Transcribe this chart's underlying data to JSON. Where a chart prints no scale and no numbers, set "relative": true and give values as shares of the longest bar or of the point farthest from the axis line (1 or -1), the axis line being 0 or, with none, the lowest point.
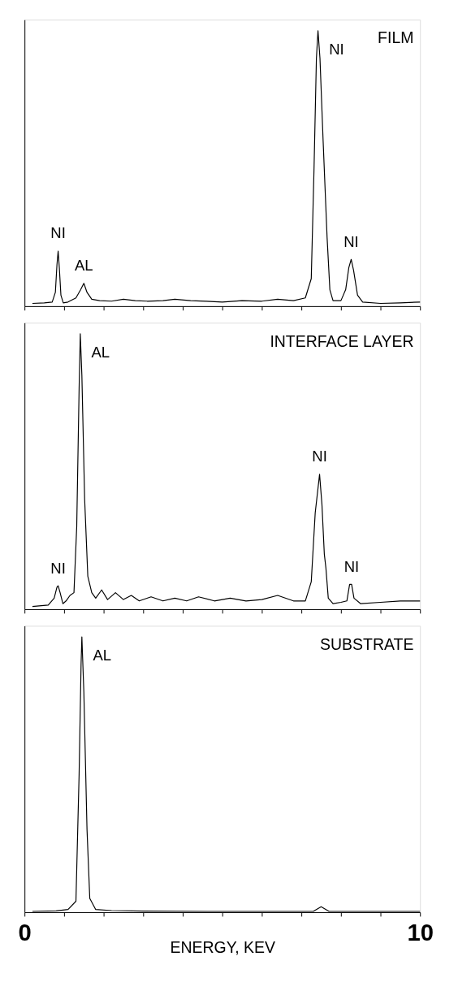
{
  "chart_data": [
    {
      "type": "line",
      "title": "FILM",
      "relative": true,
      "xlim": [
        0,
        10
      ],
      "tick_labels": false,
      "xticks": [
        0,
        {
          "value": 1,
          "label": null
        },
        {
          "value": 2,
          "label": null
        },
        {
          "value": 3,
          "label": null
        },
        {
          "value": 4,
          "label": null
        },
        {
          "value": 5,
          "label": null
        },
        {
          "value": 6,
          "label": null
        },
        {
          "value": 7,
          "label": null
        },
        {
          "value": 8,
          "label": null
        },
        {
          "value": 9,
          "label": null
        },
        10
      ],
      "series": [
        {
          "color": "#000000",
          "x": [
            0.2,
            0.5,
            0.7,
            0.78,
            0.82,
            0.85,
            0.88,
            0.92,
            0.98,
            1.1,
            1.3,
            1.42,
            1.5,
            1.58,
            1.7,
            1.9,
            2.2,
            2.5,
            2.8,
            3.1,
            3.5,
            3.8,
            4.2,
            4.6,
            5.0,
            5.5,
            6.0,
            6.4,
            6.8,
            7.1,
            7.25,
            7.32,
            7.38,
            7.42,
            7.47,
            7.55,
            7.65,
            7.72,
            7.8,
            8.0,
            8.12,
            8.2,
            8.26,
            8.32,
            8.42,
            8.55,
            9.0,
            9.5,
            10
          ],
          "values": [
            0.01,
            0.012,
            0.015,
            0.05,
            0.15,
            0.2,
            0.14,
            0.04,
            0.012,
            0.015,
            0.03,
            0.06,
            0.083,
            0.05,
            0.025,
            0.02,
            0.018,
            0.025,
            0.02,
            0.018,
            0.02,
            0.025,
            0.02,
            0.018,
            0.015,
            0.02,
            0.018,
            0.025,
            0.02,
            0.03,
            0.1,
            0.5,
            0.9,
            1,
            0.9,
            0.6,
            0.25,
            0.06,
            0.02,
            0.02,
            0.06,
            0.14,
            0.17,
            0.13,
            0.04,
            0.015,
            0.01,
            0.012,
            0.015
          ]
        }
      ],
      "annotations": [
        {
          "text": "NI",
          "x": 0.85,
          "y": 0.2
        },
        {
          "text": "AL",
          "x": 1.5,
          "y": 0.083
        },
        {
          "text": "NI",
          "x": 7.42,
          "y": 1
        },
        {
          "text": "NI",
          "x": 8.26,
          "y": 0.17
        }
      ]
    },
    {
      "type": "line",
      "title": "INTERFACE LAYER",
      "relative": true,
      "xlim": [
        0,
        10
      ],
      "tick_labels": false,
      "xticks": [
        0,
        {
          "value": 1,
          "label": null
        },
        {
          "value": 2,
          "label": null
        },
        {
          "value": 3,
          "label": null
        },
        {
          "value": 4,
          "label": null
        },
        {
          "value": 5,
          "label": null
        },
        {
          "value": 6,
          "label": null
        },
        {
          "value": 7,
          "label": null
        },
        {
          "value": 8,
          "label": null
        },
        {
          "value": 9,
          "label": null
        },
        10
      ],
      "series": [
        {
          "color": "#000000",
          "x": [
            0.2,
            0.6,
            0.75,
            0.82,
            0.85,
            0.9,
            0.97,
            1.05,
            1.15,
            1.25,
            1.32,
            1.38,
            1.41,
            1.45,
            1.52,
            1.6,
            1.7,
            1.8,
            1.95,
            2.1,
            2.3,
            2.5,
            2.7,
            2.9,
            3.2,
            3.5,
            3.8,
            4.1,
            4.4,
            4.8,
            5.2,
            5.6,
            6.0,
            6.4,
            6.8,
            7.1,
            7.25,
            7.35,
            7.46,
            7.52,
            7.58,
            7.62,
            7.68,
            7.8,
            8.0,
            8.15,
            8.22,
            8.27,
            8.33,
            8.5,
            9.0,
            9.5,
            10
          ],
          "values": [
            0.01,
            0.015,
            0.04,
            0.08,
            0.085,
            0.06,
            0.02,
            0.03,
            0.05,
            0.06,
            0.3,
            0.8,
            1,
            0.85,
            0.4,
            0.12,
            0.06,
            0.04,
            0.07,
            0.035,
            0.06,
            0.035,
            0.05,
            0.03,
            0.045,
            0.03,
            0.04,
            0.03,
            0.045,
            0.03,
            0.04,
            0.03,
            0.035,
            0.05,
            0.03,
            0.03,
            0.1,
            0.35,
            0.49,
            0.38,
            0.2,
            0.15,
            0.04,
            0.02,
            0.025,
            0.03,
            0.09,
            0.09,
            0.04,
            0.02,
            0.025,
            0.03,
            0.03
          ]
        }
      ],
      "annotations": [
        {
          "text": "NI",
          "x": 0.85,
          "y": 0.085
        },
        {
          "text": "AL",
          "x": 1.41,
          "y": 1
        },
        {
          "text": "NI",
          "x": 7.46,
          "y": 0.49
        },
        {
          "text": "NI",
          "x": 8.27,
          "y": 0.09
        }
      ]
    },
    {
      "type": "line",
      "title": "SUBSTRATE",
      "xlabel": "ENERGY, KEV",
      "relative": true,
      "xlim": [
        0,
        10
      ],
      "tick_labels": "x",
      "xticks": [
        0,
        {
          "value": 1,
          "label": null
        },
        {
          "value": 2,
          "label": null
        },
        {
          "value": 3,
          "label": null
        },
        {
          "value": 4,
          "label": null
        },
        {
          "value": 5,
          "label": null
        },
        {
          "value": 6,
          "label": null
        },
        {
          "value": 7,
          "label": null
        },
        {
          "value": 8,
          "label": null
        },
        {
          "value": 9,
          "label": null
        },
        10
      ],
      "series": [
        {
          "color": "#000000",
          "x": [
            0.2,
            0.8,
            1.1,
            1.3,
            1.38,
            1.43,
            1.45,
            1.5,
            1.58,
            1.65,
            1.8,
            2.2,
            3,
            5,
            7.3,
            7.5,
            7.7,
            10
          ],
          "values": [
            0.003,
            0.005,
            0.01,
            0.04,
            0.5,
            0.9,
            1,
            0.8,
            0.3,
            0.05,
            0.01,
            0.006,
            0.004,
            0.003,
            0.003,
            0.02,
            0.003,
            0.003
          ]
        }
      ],
      "annotations": [
        {
          "text": "AL",
          "x": 1.45,
          "y": 1
        }
      ]
    }
  ]
}
